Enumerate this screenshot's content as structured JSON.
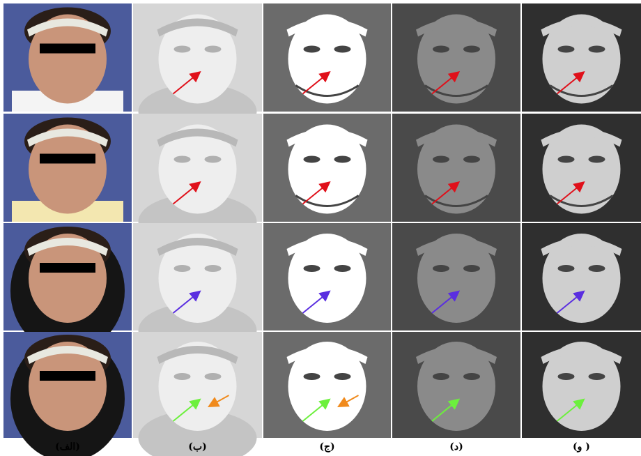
{
  "panels": [
    {
      "label": "(الف)"
    },
    {
      "label": "(ب)"
    },
    {
      "label": "(ج)"
    },
    {
      "label": "(د)"
    },
    {
      "label": "(و )"
    }
  ]
}
